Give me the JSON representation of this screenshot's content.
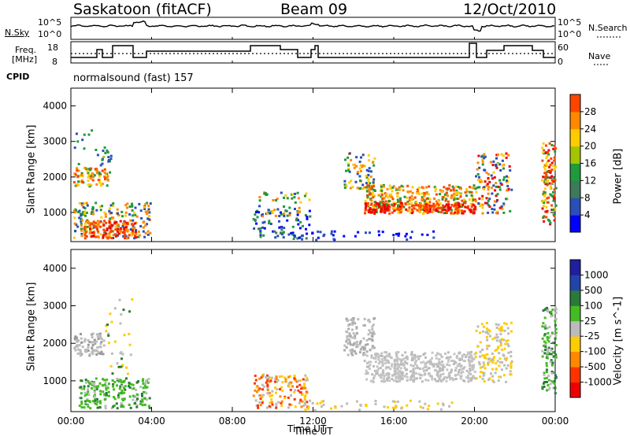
{
  "header": {
    "title": "Saskatoon (fitACF)",
    "beam": "Beam 09",
    "date": "12/Oct/2010"
  },
  "status_labels": {
    "nsky": "N.Sky",
    "nsearch": "N.Search",
    "freq": "Freq.",
    "mhz": "[MHz]",
    "nave": "Nave",
    "cpid": "CPID",
    "cpid_value": "normalsound (fast) 157"
  },
  "noise_axis": {
    "top": "10^5",
    "bottom": "10^0",
    "top_r": "10^5",
    "bottom_r": "10^0"
  },
  "freq_axis": {
    "top": "18",
    "bottom": "8",
    "nave_top": "60",
    "nave_bottom": "0"
  },
  "colors": {
    "power_scale": [
      "#0000ff",
      "#2a4fb8",
      "#3d7a5a",
      "#1f9a3c",
      "#a4c400",
      "#ffcc00",
      "#ff8800",
      "#ff4400",
      "#ee0000"
    ],
    "velocity_scale": [
      "#1f1f9f",
      "#2244aa",
      "#2a7a3a",
      "#44bb22",
      "#bbbbbb",
      "#bbbbbb",
      "#ffcc00",
      "#ff8800",
      "#ff3300",
      "#ee0000"
    ]
  },
  "chart_data": [
    {
      "type": "heatmap",
      "ylabel": "Slant Range [km]",
      "xlabel": "",
      "ylim": [
        180,
        4500
      ],
      "yticks": [
        "1000",
        "2000",
        "3000",
        "4000"
      ],
      "colorbar": {
        "label": "Power [dB]",
        "ticks": [
          "4",
          "8",
          "12",
          "16",
          "20",
          "24",
          "28"
        ]
      }
    },
    {
      "type": "heatmap",
      "ylabel": "Slant Range [km]",
      "xlabel": "Time UT",
      "ylim": [
        180,
        4500
      ],
      "yticks": [
        "1000",
        "2000",
        "3000",
        "4000"
      ],
      "xticks": [
        "00:00",
        "04:00",
        "08:00",
        "12:00",
        "16:00",
        "20:00",
        "00:00"
      ],
      "colorbar": {
        "label": "Velocity [m s^-1]",
        "ticks": [
          "1000",
          "500",
          "100",
          "25",
          "-25",
          "-100",
          "-500",
          "-1000"
        ]
      }
    }
  ]
}
